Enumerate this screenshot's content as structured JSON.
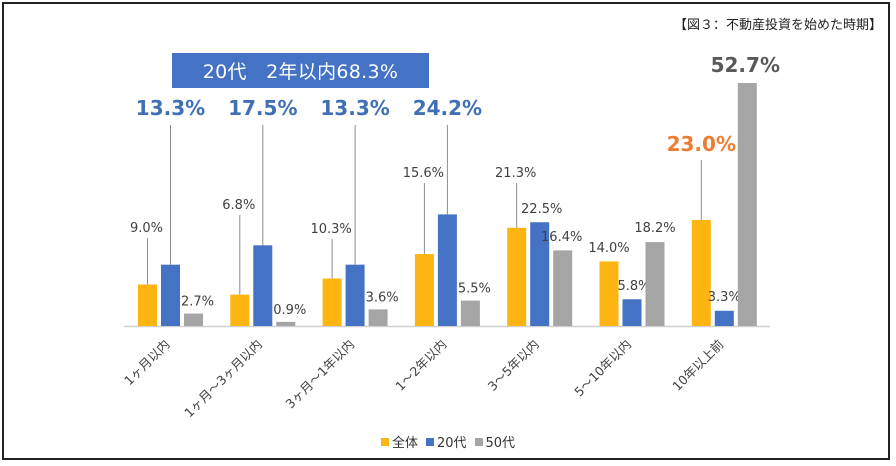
{
  "caption": "【図３：不動産投資を始めた時期】",
  "banner": "20代　2年以内68.3%",
  "chart_data": {
    "type": "bar",
    "title": "不動産投資を始めた時期",
    "categories": [
      "1ヶ月以内",
      "1ヶ月〜3ヶ月以内",
      "3ヶ月〜1年以内",
      "1〜2年以内",
      "3〜5年以内",
      "5〜10年以内",
      "10年以上前"
    ],
    "series": [
      {
        "name": "全体",
        "color": "#ffb511",
        "values": [
          9.0,
          6.8,
          10.3,
          15.6,
          21.3,
          14.0,
          23.0
        ]
      },
      {
        "name": "20代",
        "color": "#4472c4",
        "values": [
          13.3,
          17.5,
          13.3,
          24.2,
          22.5,
          5.8,
          3.3
        ]
      },
      {
        "name": "50代",
        "color": "#a5a5a5",
        "values": [
          2.7,
          0.9,
          3.6,
          5.5,
          16.4,
          18.2,
          52.7
        ]
      }
    ],
    "value_labels": [
      [
        "9.0%",
        "6.8%",
        "10.3%",
        "15.6%",
        "21.3%",
        "14.0%",
        "23.0%"
      ],
      [
        "13.3%",
        "17.5%",
        "13.3%",
        "24.2%",
        "22.5%",
        "5.8%",
        "3.3%"
      ],
      [
        "2.7%",
        "0.9%",
        "3.6%",
        "5.5%",
        "16.4%",
        "18.2%",
        "52.7%"
      ]
    ],
    "highlight_colors": {
      "large_blue": "#3f6fb5",
      "orange": "#ed7d31",
      "dark_gray": "#595959"
    },
    "ylim": [
      0,
      55
    ],
    "xlabel": "",
    "ylabel": "",
    "grid": false,
    "legend_position": "bottom"
  }
}
